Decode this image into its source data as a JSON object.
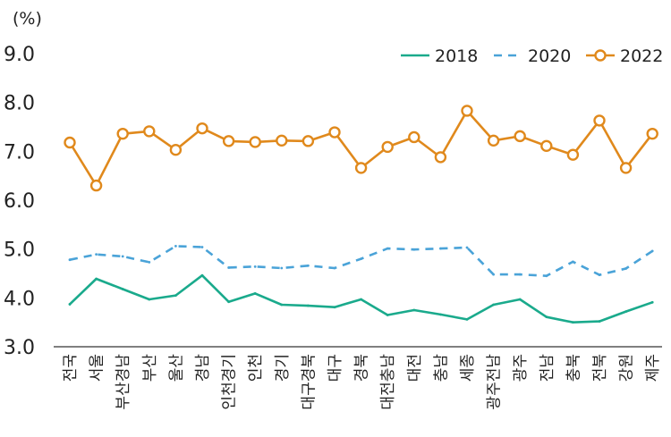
{
  "chart_data": {
    "type": "line",
    "unit_label": "(%)",
    "ylim": [
      3.0,
      9.0
    ],
    "yticks": [
      "9.0",
      "8.0",
      "7.0",
      "6.0",
      "5.0",
      "4.0",
      "3.0"
    ],
    "categories": [
      "전국",
      "서울",
      "부산경남",
      "부산",
      "울산",
      "경남",
      "인천경기",
      "인천",
      "경기",
      "대구경북",
      "대구",
      "경북",
      "대전충남",
      "대전",
      "충남",
      "세종",
      "광주전남",
      "광주",
      "전남",
      "충북",
      "전북",
      "강원",
      "제주"
    ],
    "series": [
      {
        "name": "2018",
        "style": "solid",
        "color": "#1aaa8c",
        "values": [
          3.87,
          4.39,
          4.18,
          3.97,
          4.05,
          4.46,
          3.92,
          4.09,
          3.86,
          3.84,
          3.81,
          3.97,
          3.65,
          3.75,
          3.66,
          3.56,
          3.86,
          3.97,
          3.61,
          3.5,
          3.52,
          3.72,
          3.91
        ]
      },
      {
        "name": "2020",
        "style": "dashed",
        "color": "#4aa3d8",
        "values": [
          4.78,
          4.89,
          4.85,
          4.73,
          5.06,
          5.04,
          4.62,
          4.64,
          4.61,
          4.66,
          4.61,
          4.8,
          5.01,
          4.99,
          5.01,
          5.03,
          4.48,
          4.48,
          4.45,
          4.74,
          4.47,
          4.6,
          4.96
        ]
      },
      {
        "name": "2022",
        "style": "solid-marker",
        "color": "#e0891c",
        "values": [
          7.18,
          6.3,
          7.36,
          7.41,
          7.03,
          7.47,
          7.21,
          7.19,
          7.22,
          7.21,
          7.39,
          6.66,
          7.09,
          7.29,
          6.88,
          7.83,
          7.22,
          7.31,
          7.11,
          6.93,
          7.63,
          6.66,
          7.36
        ]
      }
    ],
    "legend_position": "top-right",
    "grid": false
  }
}
